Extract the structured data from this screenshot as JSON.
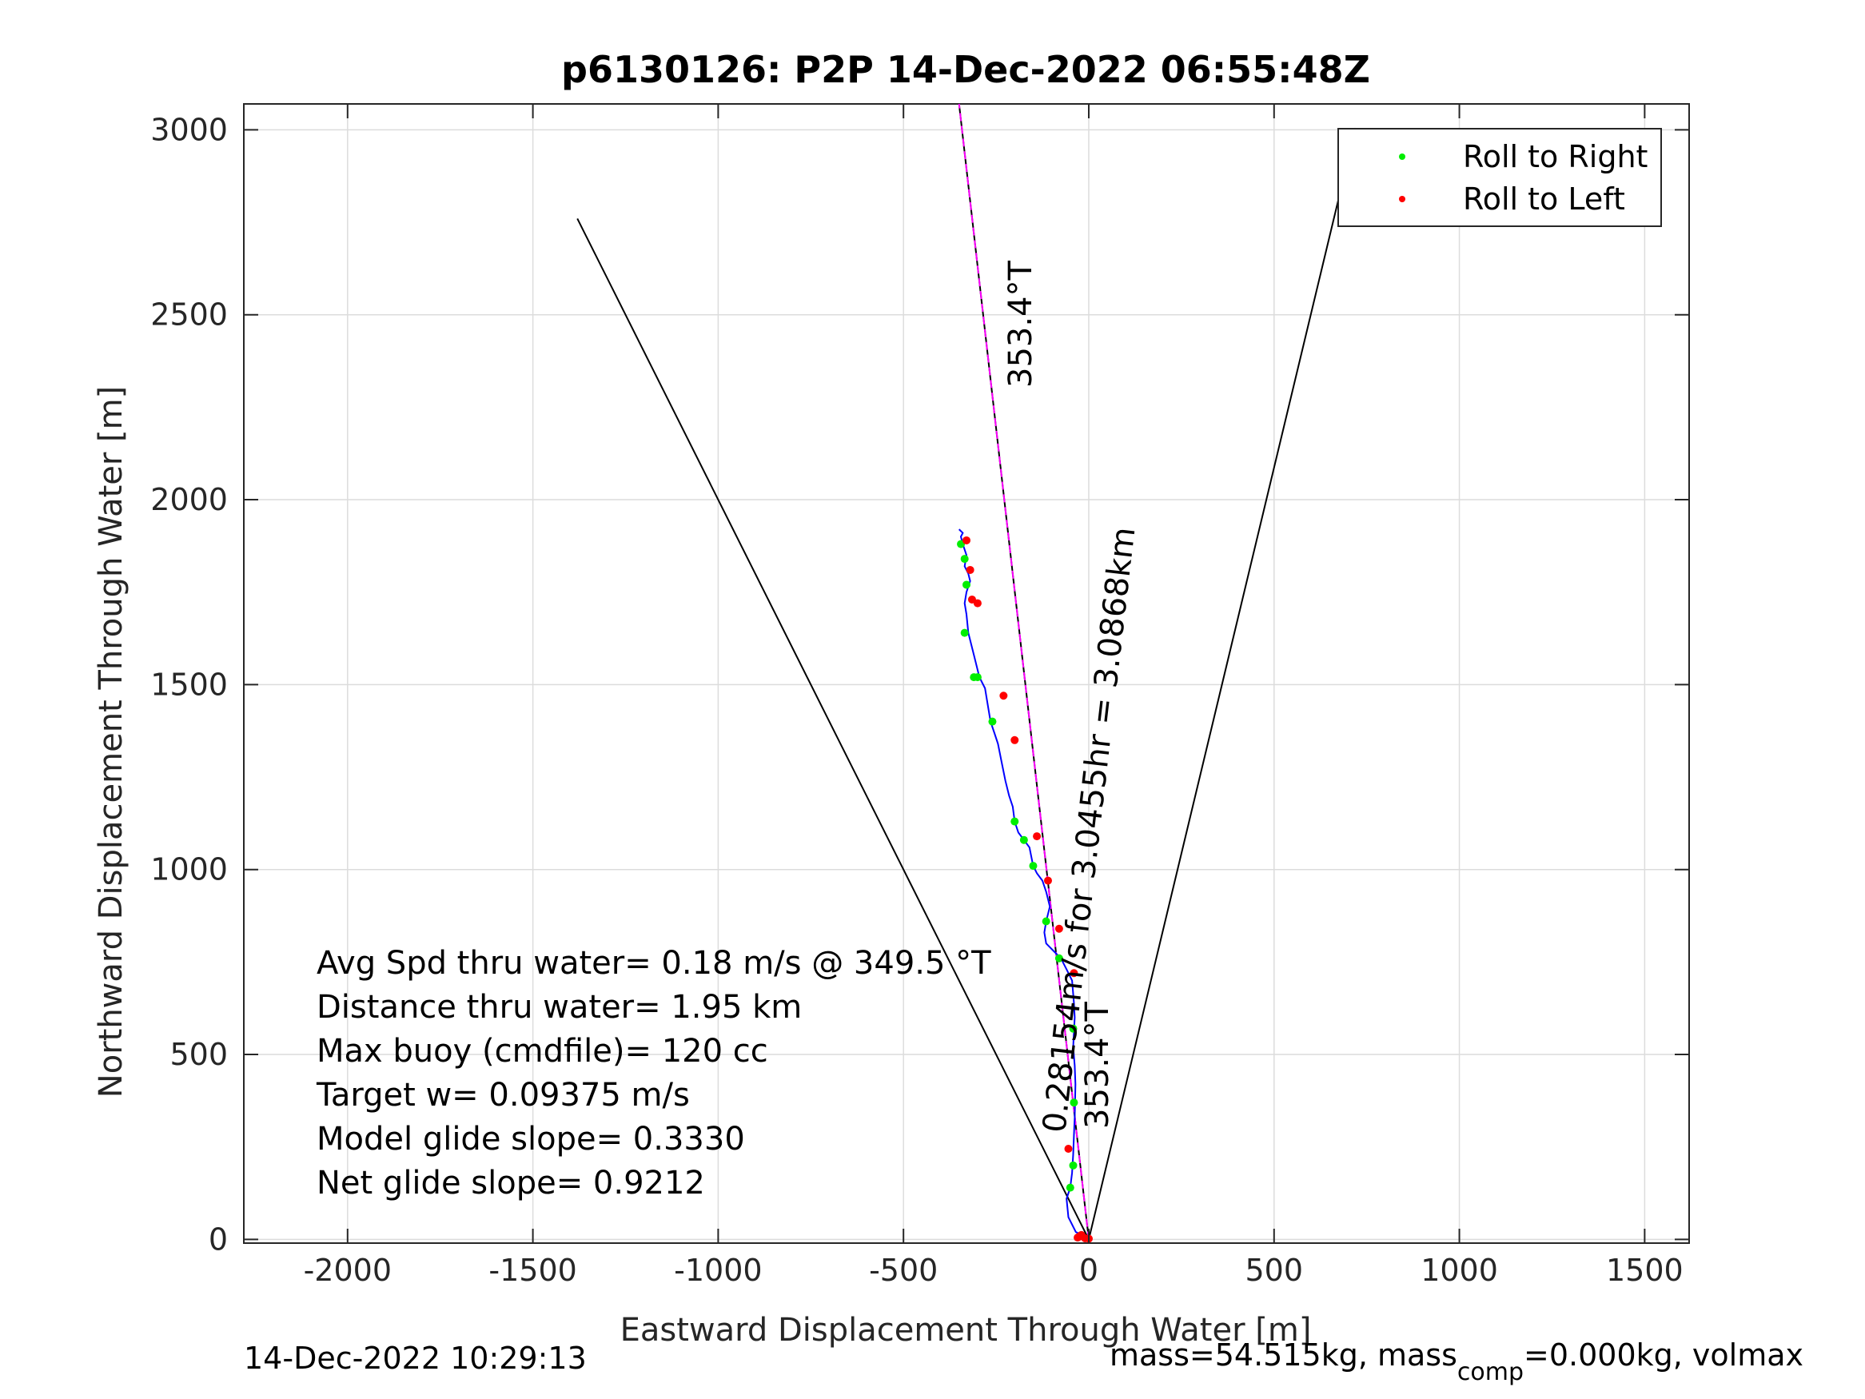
{
  "chart_data": {
    "type": "line",
    "title": "p6130126: P2P 14-Dec-2022 06:55:48Z",
    "xlabel": "Eastward Displacement Through Water [m]",
    "ylabel": "Northward Displacement Through Water [m]",
    "xlim": [
      -2280,
      1620
    ],
    "ylim": [
      -10,
      3070
    ],
    "xticks": [
      -2000,
      -1500,
      -1000,
      -500,
      0,
      500,
      1000,
      1500
    ],
    "yticks": [
      0,
      500,
      1000,
      1500,
      2000,
      2500,
      3000
    ],
    "grid": true,
    "legend_position": "top-right",
    "legend": [
      {
        "label": "Roll to Right",
        "color": "#00ee00"
      },
      {
        "label": "Roll to Left",
        "color": "#ff0000"
      }
    ],
    "colors": {
      "track": "#0000ff",
      "target_line": "#ff00ff",
      "cone": "#000000",
      "roll_right": "#00ee00",
      "roll_left": "#ff0000",
      "text": "#262626"
    },
    "cone_lines": [
      {
        "x": [
          0,
          -1380
        ],
        "y": [
          0,
          2760
        ]
      },
      {
        "x": [
          0,
          720
        ],
        "y": [
          0,
          3005
        ]
      }
    ],
    "heading_line": {
      "x": [
        0,
        -350
      ],
      "y": [
        0,
        3070
      ]
    },
    "track": {
      "x": [
        0,
        -15,
        -35,
        -55,
        -60,
        -50,
        -45,
        -42,
        -40,
        -38,
        -37,
        -36,
        -38,
        -42,
        -40,
        -38,
        -40,
        -45,
        -60,
        -75,
        -95,
        -115,
        -120,
        -115,
        -105,
        -115,
        -125,
        -140,
        -150,
        -160,
        -175,
        -190,
        -200,
        -205,
        -215,
        -225,
        -235,
        -245,
        -255,
        -265,
        -270,
        -275,
        -280,
        -295,
        -310,
        -325,
        -330,
        -335,
        -330,
        -320,
        -325,
        -335,
        -330,
        -340,
        -345,
        -340,
        -350
      ],
      "y": [
        5,
        10,
        20,
        60,
        110,
        140,
        180,
        230,
        280,
        330,
        370,
        420,
        470,
        520,
        560,
        600,
        640,
        700,
        730,
        760,
        780,
        800,
        830,
        860,
        900,
        940,
        970,
        990,
        1010,
        1060,
        1080,
        1100,
        1130,
        1170,
        1200,
        1240,
        1290,
        1340,
        1370,
        1400,
        1430,
        1460,
        1490,
        1520,
        1580,
        1640,
        1690,
        1720,
        1750,
        1780,
        1800,
        1820,
        1850,
        1880,
        1900,
        1910,
        1920
      ]
    },
    "roll_right_points": {
      "x": [
        -50,
        -42,
        -40,
        -42,
        -80,
        -115,
        -150,
        -175,
        -200,
        -260,
        -300,
        -310,
        -335,
        -330,
        -335,
        -345
      ],
      "y": [
        140,
        200,
        370,
        570,
        760,
        860,
        1010,
        1080,
        1130,
        1400,
        1520,
        1520,
        1640,
        1770,
        1840,
        1880
      ]
    },
    "roll_left_points": {
      "x": [
        -55,
        -40,
        -80,
        -110,
        -140,
        -200,
        -230,
        -300,
        -320,
        -330,
        -315,
        -30,
        -25,
        -20,
        -10,
        0
      ],
      "y": [
        245,
        720,
        840,
        970,
        1090,
        1350,
        1470,
        1720,
        1810,
        1890,
        1730,
        5,
        8,
        12,
        3,
        2
      ]
    },
    "annotations": {
      "heading_upper": "353.4°T",
      "heading_lower": "353.4°T",
      "speed_distance": "0.28154m/s for 3.0455hr = 3.0868km"
    },
    "stats": {
      "line1": "Avg Spd thru water=  0.18 m/s @ 349.5 °T",
      "line2": "Distance thru water=  1.95 km",
      "line3": "Max buoy (cmdfile)= 120 cc",
      "line4": "Target w= 0.09375 m/s",
      "line5": "Model glide slope= 0.3330",
      "line6": "Net glide slope= 0.9212"
    }
  },
  "footer": {
    "timestamp": "14-Dec-2022 10:29:13",
    "mass_text_a": "mass=54.515kg, mass",
    "mass_sub": "comp",
    "mass_text_b": "=0.000kg, volmax"
  }
}
